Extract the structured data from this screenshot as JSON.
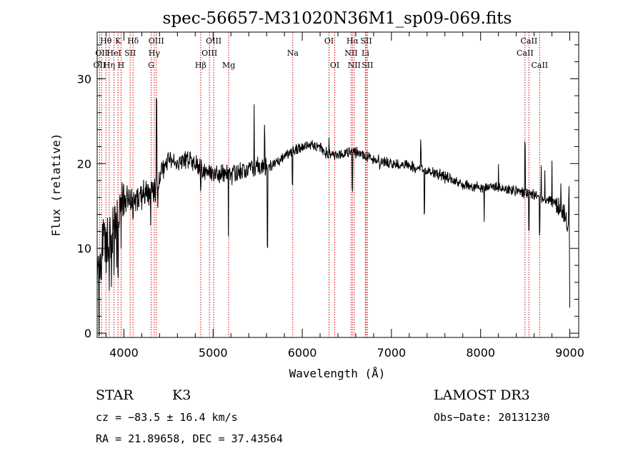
{
  "chart_data": {
    "type": "line",
    "title": "spec-56657-M31020N36M1_sp09-069.fits",
    "xlabel": "Wavelength (Å)",
    "ylabel": "Flux (relative)",
    "xlim": [
      3700,
      9100
    ],
    "ylim": [
      -0.5,
      35.5
    ],
    "xticks": [
      4000,
      5000,
      6000,
      7000,
      8000,
      9000
    ],
    "yticks": [
      0,
      10,
      20,
      30
    ],
    "xtick_labels": [
      "4000",
      "5000",
      "6000",
      "7000",
      "8000",
      "9000"
    ],
    "ytick_labels": [
      "0",
      "10",
      "20",
      "30"
    ],
    "xminor_step": 200,
    "yminor_step": 2,
    "continuum_points": [
      [
        3700,
        7.5
      ],
      [
        3720,
        6.0
      ],
      [
        3760,
        10.5
      ],
      [
        3800,
        11.0
      ],
      [
        3850,
        11.0
      ],
      [
        3900,
        12.5
      ],
      [
        3950,
        13.5
      ],
      [
        4000,
        15.5
      ],
      [
        4050,
        16.0
      ],
      [
        4100,
        15.8
      ],
      [
        4150,
        16.0
      ],
      [
        4200,
        16.3
      ],
      [
        4250,
        16.3
      ],
      [
        4300,
        16.5
      ],
      [
        4350,
        17.0
      ],
      [
        4400,
        18.0
      ],
      [
        4450,
        19.5
      ],
      [
        4500,
        20.5
      ],
      [
        4600,
        20.5
      ],
      [
        4700,
        20.5
      ],
      [
        4800,
        20.0
      ],
      [
        4900,
        19.0
      ],
      [
        5000,
        18.8
      ],
      [
        5100,
        18.8
      ],
      [
        5200,
        18.5
      ],
      [
        5300,
        19.0
      ],
      [
        5400,
        19.5
      ],
      [
        5500,
        19.5
      ],
      [
        5600,
        19.5
      ],
      [
        5700,
        20.0
      ],
      [
        5800,
        21.0
      ],
      [
        5900,
        21.5
      ],
      [
        6000,
        22.0
      ],
      [
        6100,
        22.2
      ],
      [
        6200,
        21.8
      ],
      [
        6300,
        21.0
      ],
      [
        6400,
        21.0
      ],
      [
        6500,
        21.2
      ],
      [
        6600,
        21.3
      ],
      [
        6700,
        21.0
      ],
      [
        6800,
        20.5
      ],
      [
        6900,
        20.3
      ],
      [
        7000,
        20.0
      ],
      [
        7200,
        19.8
      ],
      [
        7400,
        19.2
      ],
      [
        7600,
        18.5
      ],
      [
        7800,
        17.5
      ],
      [
        8000,
        17.2
      ],
      [
        8200,
        17.2
      ],
      [
        8400,
        16.8
      ],
      [
        8600,
        16.3
      ],
      [
        8800,
        15.5
      ],
      [
        8900,
        15.0
      ],
      [
        8950,
        14.0
      ],
      [
        8980,
        12.5
      ],
      [
        9000,
        12.0
      ]
    ],
    "features": [
      [
        3720,
        -5.5
      ],
      [
        3745,
        -3.5
      ],
      [
        3780,
        3.5
      ],
      [
        3800,
        -2.5
      ],
      [
        3820,
        -4.0
      ],
      [
        3835,
        -3.0
      ],
      [
        3860,
        -4.0
      ],
      [
        3890,
        -2.5
      ],
      [
        3920,
        -5.0
      ],
      [
        3934,
        -4.5
      ],
      [
        3968,
        -5.0
      ],
      [
        4000,
        3.0
      ],
      [
        4101,
        -2.5
      ],
      [
        4226,
        -1.5
      ],
      [
        4300,
        -4.5
      ],
      [
        4340,
        -2.0
      ],
      [
        4365,
        9.5
      ],
      [
        4383,
        -2.0
      ],
      [
        4861,
        -1.5
      ],
      [
        5172,
        -6.0
      ],
      [
        5270,
        -1.0
      ],
      [
        5460,
        6.5
      ],
      [
        5577,
        4.0
      ],
      [
        5610,
        -9.0
      ],
      [
        5890,
        -3.5
      ],
      [
        6300,
        2.0
      ],
      [
        6563,
        -4.5
      ],
      [
        6870,
        -1.0
      ],
      [
        7330,
        3.0
      ],
      [
        7370,
        -5.5
      ],
      [
        7600,
        -1.0
      ],
      [
        8040,
        -4.5
      ],
      [
        8200,
        3.0
      ],
      [
        8498,
        6.0
      ],
      [
        8542,
        -4.5
      ],
      [
        8662,
        -4.0
      ],
      [
        8680,
        3.5
      ],
      [
        8720,
        3.5
      ],
      [
        8800,
        4.5
      ],
      [
        8900,
        3.0
      ],
      [
        8990,
        4.0
      ],
      [
        9000,
        -9.0
      ]
    ],
    "spectral_lines": [
      {
        "wavelength": 3727,
        "row": 2,
        "label": "OII"
      },
      {
        "wavelength": 3750,
        "row": 1,
        "label": "OII"
      },
      {
        "wavelength": 3798,
        "row": 0,
        "label": "Hθ"
      },
      {
        "wavelength": 3835,
        "row": 2,
        "label": "Hη"
      },
      {
        "wavelength": 3889,
        "row": 1,
        "label": "HeI"
      },
      {
        "wavelength": 3934,
        "row": 0,
        "label": "K"
      },
      {
        "wavelength": 3968,
        "row": 2,
        "label": "H"
      },
      {
        "wavelength": 4070,
        "row": 1,
        "label": "SII"
      },
      {
        "wavelength": 4102,
        "row": 0,
        "label": "Hδ"
      },
      {
        "wavelength": 4305,
        "row": 2,
        "label": "G"
      },
      {
        "wavelength": 4340,
        "row": 1,
        "label": "Hγ"
      },
      {
        "wavelength": 4363,
        "row": 0,
        "label": "OIII"
      },
      {
        "wavelength": 4861,
        "row": 2,
        "label": "Hβ"
      },
      {
        "wavelength": 4959,
        "row": 1,
        "label": "OIII"
      },
      {
        "wavelength": 5007,
        "row": 0,
        "label": "OIII"
      },
      {
        "wavelength": 5175,
        "row": 2,
        "label": "Mg"
      },
      {
        "wavelength": 5894,
        "row": 1,
        "label": "Na"
      },
      {
        "wavelength": 6300,
        "row": 0,
        "label": "OI"
      },
      {
        "wavelength": 6364,
        "row": 2,
        "label": "OI"
      },
      {
        "wavelength": 6548,
        "row": 1,
        "label": "NII"
      },
      {
        "wavelength": 6563,
        "row": 0,
        "label": "Hα"
      },
      {
        "wavelength": 6583,
        "row": 2,
        "label": "NII"
      },
      {
        "wavelength": 6708,
        "row": 1,
        "label": "Li"
      },
      {
        "wavelength": 6717,
        "row": 0,
        "label": "SII"
      },
      {
        "wavelength": 6731,
        "row": 2,
        "label": "SII"
      },
      {
        "wavelength": 8498,
        "row": 1,
        "label": "CaII"
      },
      {
        "wavelength": 8542,
        "row": 0,
        "label": "CaII"
      },
      {
        "wavelength": 8662,
        "row": 2,
        "label": "CaII"
      }
    ],
    "line_color": "#000000",
    "marker_color": "#d40000"
  },
  "info": {
    "class_label": "STAR",
    "subclass_label": "K3",
    "survey_label": "LAMOST DR3",
    "redshift_text": "cz = −83.5 ± 16.4 km/s",
    "obsdate_text": "Obs−Date: 20131230",
    "coords_text": "RA =  21.89658, DEC =  37.43564"
  }
}
